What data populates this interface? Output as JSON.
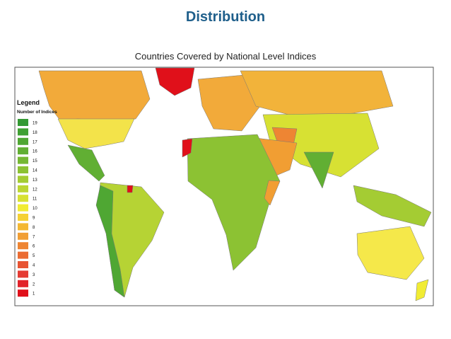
{
  "header": {
    "title": "Distribution"
  },
  "map": {
    "title": "Countries Covered by National Level Indices",
    "legend": {
      "title": "Legend",
      "subtitle": "Number of Indices",
      "items": [
        {
          "label": "19",
          "color": "#339933"
        },
        {
          "label": "18",
          "color": "#3fa033"
        },
        {
          "label": "17",
          "color": "#4fa733"
        },
        {
          "label": "16",
          "color": "#61af33"
        },
        {
          "label": "15",
          "color": "#75b833"
        },
        {
          "label": "14",
          "color": "#8cc233"
        },
        {
          "label": "13",
          "color": "#a4cc33"
        },
        {
          "label": "12",
          "color": "#bcd633"
        },
        {
          "label": "11",
          "color": "#d7e133"
        },
        {
          "label": "10",
          "color": "#f1ec33"
        },
        {
          "label": "9",
          "color": "#f5d133"
        },
        {
          "label": "8",
          "color": "#f4b833"
        },
        {
          "label": "7",
          "color": "#f19e33"
        },
        {
          "label": "6",
          "color": "#ee8533"
        },
        {
          "label": "5",
          "color": "#eb6c33"
        },
        {
          "label": "4",
          "color": "#e85433"
        },
        {
          "label": "3",
          "color": "#e53b33"
        },
        {
          "label": "2",
          "color": "#e2222a"
        },
        {
          "label": "1",
          "color": "#e0101a"
        }
      ]
    }
  }
}
